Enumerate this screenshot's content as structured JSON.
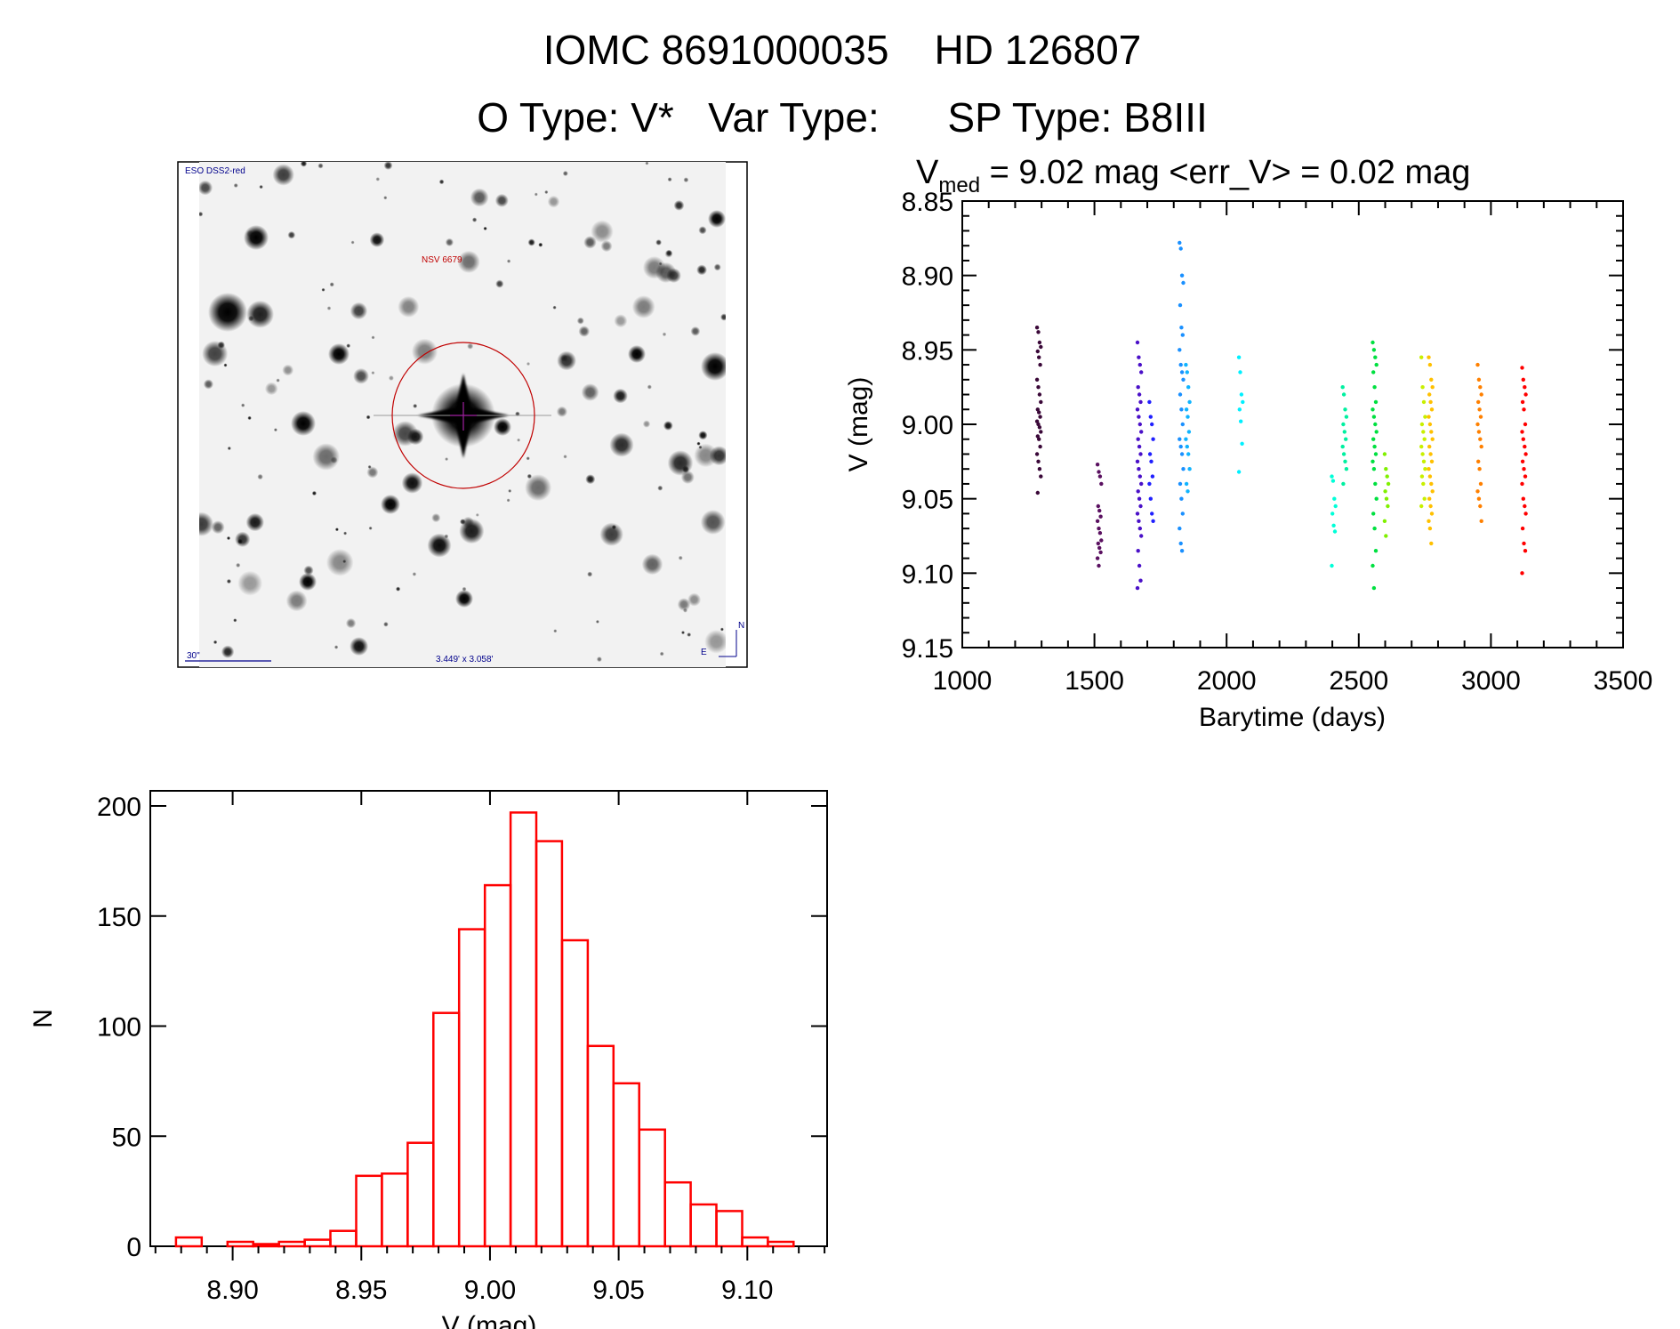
{
  "header": {
    "title": "IOMC 8691000035    HD 126807",
    "subtitle": "O Type: V*   Var Type:      SP Type: B8III"
  },
  "sky_image": {
    "survey_label": "ESO DSS2-red",
    "target_label": "NSV 6679",
    "scale_label": "30\"",
    "field_size_label": "3.449' x 3.058'",
    "north_label": "N",
    "east_label": "E",
    "label_color": "#00008b",
    "marker_color": "#c00000"
  },
  "chart_data": [
    {
      "type": "scatter",
      "title_main": "V",
      "title_sub": "med",
      "title_rest": " = 9.02 mag <err_V> = 0.02 mag",
      "xlabel": "Barytime (days)",
      "ylabel": "V (mag)",
      "xlim": [
        1000,
        3500
      ],
      "ylim": [
        9.15,
        8.85
      ],
      "y_inverted": true,
      "xticks": [
        "1000",
        "1500",
        "2000",
        "2500",
        "3000",
        "3500"
      ],
      "yticks": [
        "8.85",
        "8.90",
        "8.95",
        "9.00",
        "9.05",
        "9.10",
        "9.15"
      ],
      "groups": [
        {
          "t": 1290,
          "color": "#3a0838",
          "mags": [
            8.935,
            8.938,
            8.945,
            8.948,
            8.951,
            8.955,
            8.96,
            8.97,
            8.975,
            8.98,
            8.985,
            8.99,
            8.992,
            8.995,
            8.998,
            9.0,
            9.002,
            9.005,
            9.008,
            9.01,
            9.015,
            9.02,
            9.025,
            9.03,
            9.035,
            9.046
          ]
        },
        {
          "t": 1519,
          "color": "#5a1060",
          "mags": [
            9.027,
            9.032,
            9.035,
            9.04,
            9.055,
            9.058,
            9.062,
            9.065,
            9.07,
            9.073,
            9.078,
            9.08,
            9.083,
            9.086,
            9.09,
            9.095
          ]
        },
        {
          "t": 1670,
          "color": "#4a10c8",
          "mags": [
            8.945,
            8.955,
            8.96,
            8.965,
            8.975,
            8.98,
            8.985,
            8.99,
            8.995,
            9.0,
            9.005,
            9.01,
            9.015,
            9.02,
            9.025,
            9.03,
            9.035,
            9.04,
            9.045,
            9.05,
            9.055,
            9.06,
            9.065,
            9.07,
            9.075,
            9.085,
            9.095,
            9.105,
            9.11
          ]
        },
        {
          "t": 1715,
          "color": "#2020ff",
          "mags": [
            8.985,
            8.995,
            9.0,
            9.01,
            9.02,
            9.025,
            9.035,
            9.04,
            9.05,
            9.06,
            9.065
          ]
        },
        {
          "t": 1829,
          "color": "#1a90ff",
          "mags": [
            8.878,
            8.882,
            8.9,
            8.905,
            8.92,
            8.935,
            8.94,
            8.95,
            8.96,
            8.965,
            8.97,
            8.98,
            8.99,
            9.0,
            9.01,
            9.015,
            9.02,
            9.03,
            9.04,
            9.05,
            9.06,
            9.07,
            9.08,
            9.085
          ]
        },
        {
          "t": 1853,
          "color": "#10b4ff",
          "mags": [
            8.96,
            8.965,
            8.975,
            8.985,
            8.99,
            8.995,
            9.005,
            9.01,
            9.015,
            9.02,
            9.03,
            9.04,
            9.045
          ]
        },
        {
          "t": 2054,
          "color": "#00f0ff",
          "mags": [
            8.955,
            8.965,
            8.98,
            8.985,
            8.99,
            8.998,
            9.013,
            9.032
          ]
        },
        {
          "t": 2405,
          "color": "#00ffd8",
          "mags": [
            9.035,
            9.038,
            9.05,
            9.055,
            9.06,
            9.068,
            9.072,
            9.095
          ]
        },
        {
          "t": 2446,
          "color": "#00f0a0",
          "mags": [
            8.975,
            8.98,
            8.99,
            8.995,
            9.0,
            9.005,
            9.01,
            9.015,
            9.02,
            9.025,
            9.03,
            9.04
          ]
        },
        {
          "t": 2560,
          "color": "#00e040",
          "mags": [
            8.945,
            8.95,
            8.955,
            8.96,
            8.965,
            8.975,
            8.985,
            8.99,
            8.995,
            9.0,
            9.005,
            9.01,
            9.015,
            9.02,
            9.025,
            9.03,
            9.04,
            9.05,
            9.06,
            9.07,
            9.085,
            9.095,
            9.11
          ]
        },
        {
          "t": 2605,
          "color": "#80f000",
          "mags": [
            9.02,
            9.03,
            9.035,
            9.04,
            9.045,
            9.05,
            9.055,
            9.065,
            9.075
          ]
        },
        {
          "t": 2744,
          "color": "#c8f000",
          "mags": [
            8.955,
            8.975,
            8.985,
            8.995,
            9.0,
            9.005,
            9.01,
            9.015,
            9.02,
            9.025,
            9.03,
            9.035,
            9.04,
            9.05,
            9.055
          ]
        },
        {
          "t": 2772,
          "color": "#ffc000",
          "mags": [
            8.955,
            8.96,
            8.97,
            8.975,
            8.98,
            8.985,
            8.99,
            8.995,
            9.0,
            9.005,
            9.01,
            9.015,
            9.02,
            9.025,
            9.03,
            9.035,
            9.04,
            9.045,
            9.05,
            9.055,
            9.06,
            9.065,
            9.07,
            9.08
          ]
        },
        {
          "t": 2957,
          "color": "#ff8000",
          "mags": [
            8.96,
            8.97,
            8.975,
            8.98,
            8.985,
            8.99,
            8.995,
            9.0,
            9.005,
            9.01,
            9.015,
            9.025,
            9.03,
            9.04,
            9.045,
            9.05,
            9.055,
            9.065
          ]
        },
        {
          "t": 3125,
          "color": "#ff0000",
          "mags": [
            8.962,
            8.97,
            8.975,
            8.98,
            8.985,
            8.99,
            9.0,
            9.005,
            9.01,
            9.015,
            9.02,
            9.025,
            9.03,
            9.035,
            9.04,
            9.05,
            9.055,
            9.06,
            9.07,
            9.08,
            9.085,
            9.1
          ]
        }
      ]
    },
    {
      "type": "bar",
      "subtype": "histogram",
      "xlabel": "V (mag)",
      "ylabel": "N",
      "xlim": [
        8.868,
        9.131
      ],
      "ylim": [
        0,
        200
      ],
      "xticks": [
        "8.90",
        "8.95",
        "9.00",
        "9.05",
        "9.10"
      ],
      "yticks": [
        "0",
        "50",
        "100",
        "150",
        "200"
      ],
      "bin_start": 8.878,
      "bin_width": 0.01,
      "counts": [
        4,
        0,
        2,
        1,
        2,
        3,
        7,
        32,
        33,
        47,
        106,
        144,
        164,
        197,
        184,
        139,
        91,
        74,
        53,
        29,
        19,
        16,
        4,
        2
      ],
      "color": "#ff0000"
    }
  ]
}
